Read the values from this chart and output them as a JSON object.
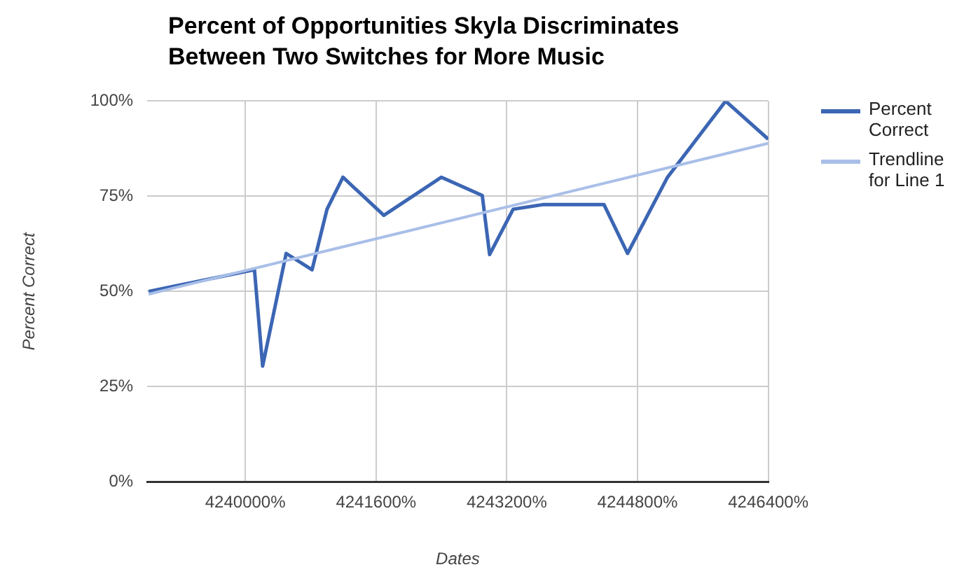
{
  "chart_data": {
    "type": "line",
    "title": "Percent of Opportunities Skyla Discriminates Between Two Switches for More Music",
    "xlabel": "Dates",
    "ylabel": "Percent Correct",
    "xlim": [
      4238800,
      4246400
    ],
    "xticks": [
      {
        "value": 4240000,
        "label": "4240000%"
      },
      {
        "value": 4241600,
        "label": "4241600%"
      },
      {
        "value": 4243200,
        "label": "4243200%"
      },
      {
        "value": 4244800,
        "label": "4244800%"
      },
      {
        "value": 4246400,
        "label": "4246400%"
      }
    ],
    "ylim": [
      0,
      100
    ],
    "yticks": [
      {
        "value": 0,
        "label": "0%"
      },
      {
        "value": 25,
        "label": "25%"
      },
      {
        "value": 50,
        "label": "50%"
      },
      {
        "value": 75,
        "label": "75%"
      },
      {
        "value": 100,
        "label": "100%"
      }
    ],
    "series": [
      {
        "name": "Percent Correct",
        "color": "#3c66b4",
        "x": [
          4238817,
          4240112,
          4240212,
          4240500,
          4240817,
          4241000,
          4241195,
          4241695,
          4242400,
          4242900,
          4242990,
          4243278,
          4243640,
          4244390,
          4244678,
          4245167,
          4245878,
          4246400
        ],
        "values": [
          50,
          55.7,
          30.4,
          60,
          55.7,
          71.6,
          80,
          70,
          80,
          75.2,
          59.7,
          71.6,
          72.8,
          72.8,
          60,
          80,
          100,
          90
        ]
      },
      {
        "name": "Trendline for Line 1",
        "color": "#a9bfe8",
        "type": "line",
        "x": [
          4238817,
          4246400
        ],
        "values": [
          49.3,
          88.9
        ]
      }
    ],
    "grid": true,
    "legend": "right",
    "marker": "none",
    "line_style": "solid"
  }
}
